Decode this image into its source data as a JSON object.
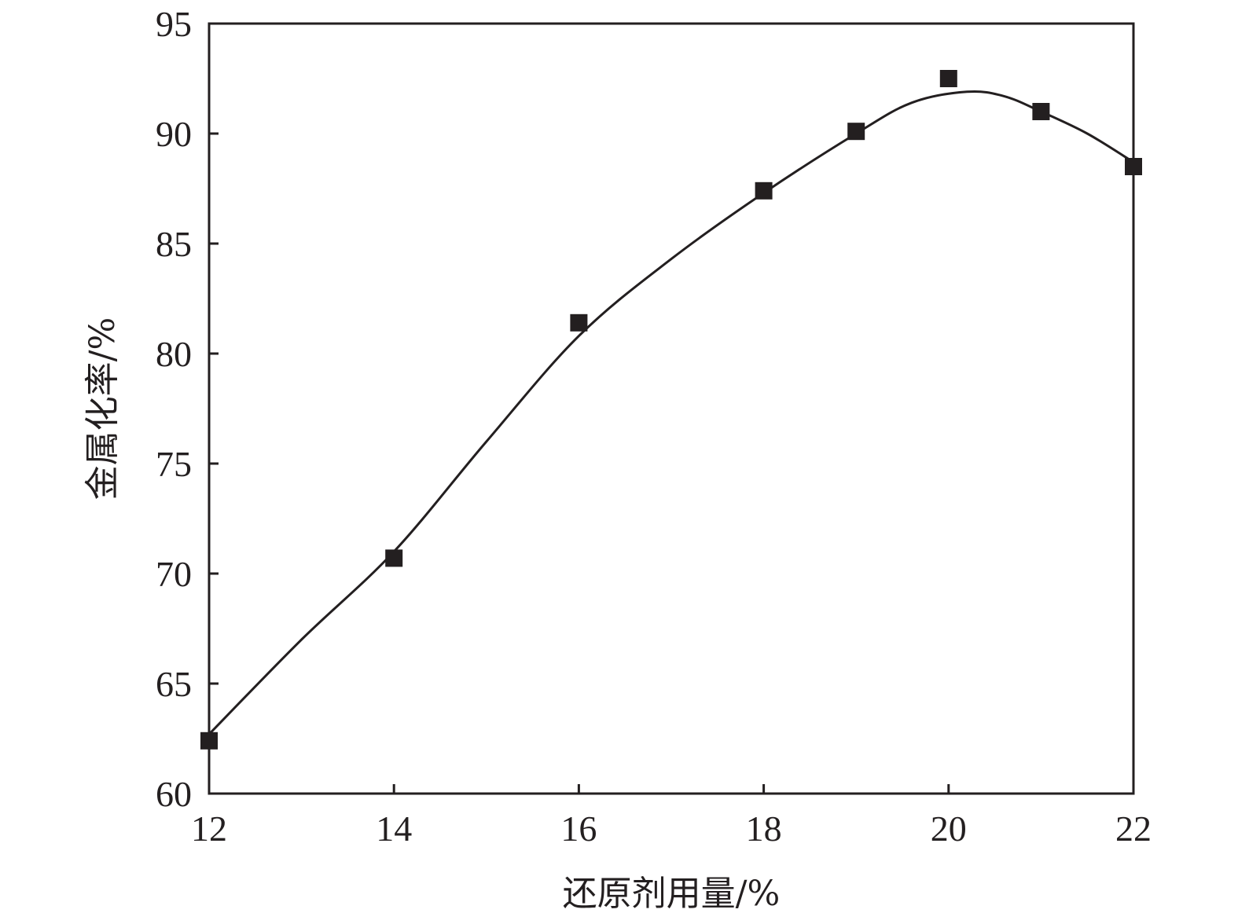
{
  "chart_data": {
    "type": "line",
    "title": "",
    "xlabel": "还原剂用量/%",
    "ylabel": "金属化率/%",
    "xlim": [
      12,
      22
    ],
    "ylim": [
      60,
      95
    ],
    "xticks": [
      "12",
      "14",
      "16",
      "18",
      "20",
      "22"
    ],
    "yticks": [
      "60",
      "65",
      "70",
      "75",
      "80",
      "85",
      "90",
      "95"
    ],
    "grid": false,
    "legend": "none",
    "series": [
      {
        "marker": "square",
        "color": "#231f20",
        "x": [
          12,
          14,
          16,
          18,
          19,
          20,
          21,
          22
        ],
        "y": [
          62.4,
          70.7,
          81.4,
          87.4,
          90.1,
          92.5,
          91.0,
          88.5
        ]
      }
    ],
    "fit_curve": {
      "color": "#231f20",
      "style": "smooth line",
      "x": [
        12,
        13,
        14,
        15,
        16,
        17,
        18,
        19,
        19.6,
        20.2,
        20.6,
        21,
        21.5,
        22
      ],
      "y": [
        62.7,
        67.0,
        71.0,
        76.0,
        80.8,
        84.3,
        87.3,
        90.0,
        91.4,
        91.9,
        91.7,
        91.0,
        90.0,
        88.7
      ]
    }
  }
}
